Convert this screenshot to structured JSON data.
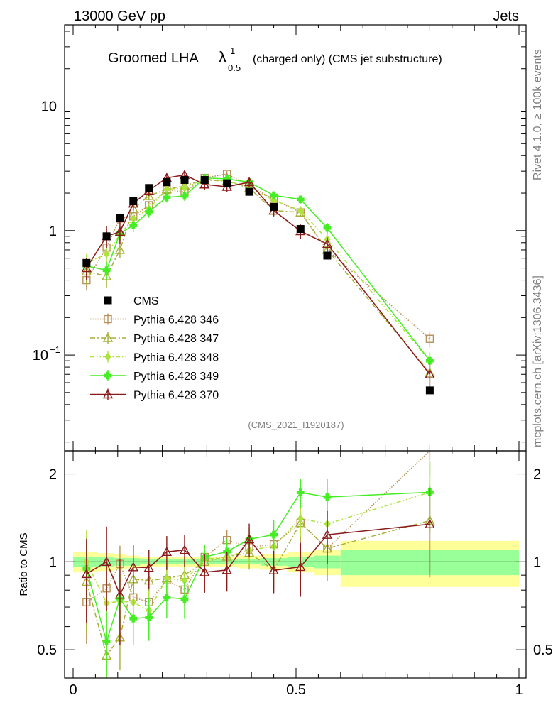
{
  "header": {
    "left": "13000 GeV pp",
    "right": "Jets"
  },
  "title": {
    "main": "Groomed LHA",
    "sym": "λ",
    "sup": "1",
    "sub": "0.5",
    "rest": "(charged only) (CMS jet substructure)"
  },
  "side": {
    "rivet": "Rivet 4.1.0, ≥ 100k events",
    "mcplots": "mcplots.cern.ch [arXiv:1306.3436]"
  },
  "analysis_id": "(CMS_2021_I1920187)",
  "ratio_ylabel": "Ratio to CMS",
  "ticks": {
    "main_y": [
      {
        "v": 0.1,
        "b": "10",
        "e": "−1"
      },
      {
        "v": 1,
        "b": "1",
        "e": ""
      },
      {
        "v": 10,
        "b": "10",
        "e": ""
      }
    ],
    "ratio_y": [
      {
        "v": 0.5,
        "t": "0.5"
      },
      {
        "v": 1,
        "t": "1"
      },
      {
        "v": 2,
        "t": "2"
      }
    ],
    "x": [
      {
        "v": 0,
        "t": "0"
      },
      {
        "v": 0.5,
        "t": "0.5"
      },
      {
        "v": 1,
        "t": "1"
      }
    ]
  },
  "colors": {
    "data": "#000000",
    "band_inner": "#99ff99",
    "band_outer": "#ffff99",
    "s346": "#b8925a",
    "s347": "#a8b038",
    "s348": "#aee23c",
    "s349": "#44ee22",
    "s370": "#8b1a1a"
  },
  "chart_data": {
    "type": "scatter",
    "x_range": [
      0,
      1
    ],
    "main_y_range": [
      0.017,
      45
    ],
    "main_scale": "log",
    "ratio_y_range": [
      0.4,
      2.4
    ],
    "ratio_scale": "log",
    "x_points": [
      0.03,
      0.075,
      0.105,
      0.135,
      0.17,
      0.21,
      0.25,
      0.295,
      0.345,
      0.395,
      0.45,
      0.51,
      0.57,
      0.8
    ],
    "data": {
      "name": "CMS",
      "values": [
        0.55,
        0.9,
        1.27,
        1.72,
        2.2,
        2.45,
        2.55,
        2.55,
        2.4,
        2.05,
        1.55,
        1.03,
        0.63,
        0.052
      ],
      "band_edges": [
        0,
        0.055,
        0.09,
        0.12,
        0.15,
        0.19,
        0.23,
        0.27,
        0.32,
        0.37,
        0.42,
        0.48,
        0.54,
        0.6,
        1.0
      ],
      "band_stat": [
        0.04,
        0.04,
        0.03,
        0.03,
        0.02,
        0.02,
        0.02,
        0.02,
        0.02,
        0.02,
        0.03,
        0.04,
        0.05,
        0.1
      ],
      "band_total": [
        0.08,
        0.07,
        0.06,
        0.05,
        0.04,
        0.04,
        0.04,
        0.04,
        0.04,
        0.05,
        0.06,
        0.08,
        0.1,
        0.18
      ]
    },
    "series": [
      {
        "name": "Pythia 6.428 346",
        "key": "s346",
        "marker": "square",
        "dash": "1.5,2",
        "values": [
          0.4,
          0.73,
          1.25,
          1.3,
          1.6,
          2.12,
          2.05,
          2.65,
          2.85,
          2.3,
          1.78,
          1.4,
          0.7,
          0.135
        ],
        "errors": [
          0.07,
          0.1,
          0.12,
          0.12,
          0.12,
          0.15,
          0.15,
          0.15,
          0.15,
          0.15,
          0.13,
          0.12,
          0.1,
          0.02
        ]
      },
      {
        "name": "Pythia 6.428 347",
        "key": "s347",
        "marker": "triangle",
        "dash": "7,3,2,3",
        "values": [
          0.47,
          0.43,
          0.7,
          1.5,
          1.9,
          2.15,
          2.3,
          2.55,
          2.5,
          2.2,
          1.45,
          1.4,
          0.7,
          0.072
        ],
        "errors": [
          0.1,
          0.08,
          0.1,
          0.15,
          0.15,
          0.17,
          0.17,
          0.17,
          0.17,
          0.17,
          0.13,
          0.12,
          0.1,
          0.015
        ]
      },
      {
        "name": "Pythia 6.428 348",
        "key": "s348",
        "marker": "diamond",
        "dash": "6,3,1.5,3,1.5,3",
        "values": [
          0.55,
          0.65,
          0.93,
          1.25,
          1.5,
          2.15,
          2.2,
          2.6,
          2.5,
          2.25,
          1.75,
          1.45,
          0.85,
          0.09
        ],
        "errors": [
          0.1,
          0.1,
          0.12,
          0.13,
          0.15,
          0.17,
          0.17,
          0.17,
          0.17,
          0.15,
          0.14,
          0.12,
          0.1,
          0.015
        ]
      },
      {
        "name": "Pythia 6.428 349",
        "key": "s349",
        "marker": "cross",
        "dash": "",
        "values": [
          0.52,
          0.48,
          0.95,
          1.1,
          1.42,
          1.85,
          1.9,
          2.65,
          2.6,
          2.45,
          1.92,
          1.78,
          1.05,
          0.09
        ],
        "errors": [
          0.08,
          0.08,
          0.13,
          0.13,
          0.15,
          0.17,
          0.17,
          0.17,
          0.17,
          0.15,
          0.15,
          0.13,
          0.1,
          0.015
        ]
      },
      {
        "name": "Pythia 6.428 370",
        "key": "s370",
        "marker": "triangle",
        "dash": "",
        "values": [
          0.5,
          0.9,
          0.98,
          1.65,
          2.1,
          2.65,
          2.8,
          2.35,
          2.25,
          2.45,
          1.45,
          0.99,
          0.78,
          0.07
        ],
        "errors": [
          0.1,
          0.18,
          0.2,
          0.2,
          0.2,
          0.22,
          0.22,
          0.22,
          0.22,
          0.2,
          0.15,
          0.13,
          0.1,
          0.015
        ]
      }
    ]
  }
}
